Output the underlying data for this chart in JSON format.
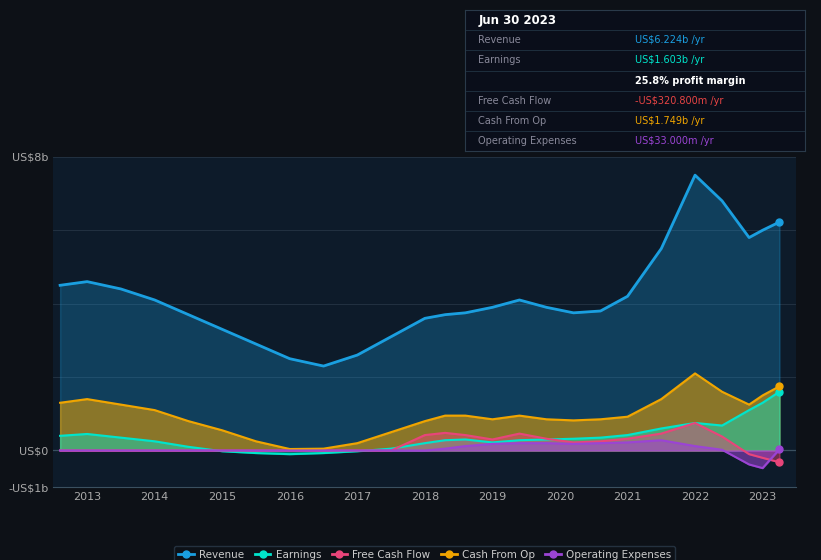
{
  "background_color": "#0d1117",
  "plot_bg_color": "#0d1b2a",
  "grid_color": "#253545",
  "title_date": "Jun 30 2023",
  "years": [
    2012.6,
    2013.0,
    2013.5,
    2014.0,
    2014.5,
    2015.0,
    2015.5,
    2016.0,
    2016.5,
    2017.0,
    2017.5,
    2018.0,
    2018.3,
    2018.6,
    2019.0,
    2019.4,
    2019.8,
    2020.2,
    2020.6,
    2021.0,
    2021.5,
    2022.0,
    2022.4,
    2022.8,
    2023.0,
    2023.25
  ],
  "revenue": [
    4.5,
    4.6,
    4.4,
    4.1,
    3.7,
    3.3,
    2.9,
    2.5,
    2.3,
    2.6,
    3.1,
    3.6,
    3.7,
    3.75,
    3.9,
    4.1,
    3.9,
    3.75,
    3.8,
    4.2,
    5.5,
    7.5,
    6.8,
    5.8,
    6.0,
    6.224
  ],
  "earnings": [
    0.4,
    0.45,
    0.35,
    0.25,
    0.1,
    -0.02,
    -0.07,
    -0.1,
    -0.07,
    -0.02,
    0.05,
    0.2,
    0.28,
    0.3,
    0.22,
    0.28,
    0.3,
    0.32,
    0.35,
    0.42,
    0.6,
    0.75,
    0.68,
    1.1,
    1.3,
    1.603
  ],
  "free_cash_flow": [
    0.0,
    0.0,
    0.0,
    0.0,
    0.0,
    0.0,
    0.0,
    0.0,
    0.0,
    0.0,
    0.0,
    0.42,
    0.48,
    0.42,
    0.3,
    0.46,
    0.32,
    0.22,
    0.25,
    0.32,
    0.46,
    0.75,
    0.38,
    -0.1,
    -0.2,
    -0.321
  ],
  "cash_from_op": [
    1.3,
    1.4,
    1.25,
    1.1,
    0.8,
    0.55,
    0.25,
    0.04,
    0.05,
    0.2,
    0.5,
    0.8,
    0.95,
    0.95,
    0.85,
    0.95,
    0.85,
    0.82,
    0.85,
    0.92,
    1.4,
    2.1,
    1.6,
    1.25,
    1.5,
    1.749
  ],
  "op_expenses": [
    0.0,
    0.0,
    0.0,
    0.0,
    0.0,
    0.0,
    0.0,
    0.0,
    0.0,
    0.0,
    0.0,
    0.0,
    0.05,
    0.12,
    0.18,
    0.2,
    0.2,
    0.18,
    0.2,
    0.22,
    0.28,
    0.12,
    0.02,
    -0.38,
    -0.48,
    0.033
  ],
  "ylim": [
    -1.0,
    8.0
  ],
  "xlim": [
    2012.5,
    2023.5
  ],
  "xticks": [
    2013,
    2014,
    2015,
    2016,
    2017,
    2018,
    2019,
    2020,
    2021,
    2022,
    2023
  ],
  "colors": {
    "revenue": "#1a9fe0",
    "earnings": "#00e5cc",
    "free_cash_flow": "#e8457a",
    "cash_from_op": "#f0a500",
    "op_expenses": "#9b44d4"
  },
  "info_rows": [
    {
      "label": "Revenue",
      "value": "US$6.224b /yr",
      "value_color": "#1a9fe0"
    },
    {
      "label": "Earnings",
      "value": "US$1.603b /yr",
      "value_color": "#00e5cc"
    },
    {
      "label": "",
      "value": "25.8% profit margin",
      "value_color": "#ffffff"
    },
    {
      "label": "Free Cash Flow",
      "value": "-US$320.800m /yr",
      "value_color": "#e84444"
    },
    {
      "label": "Cash From Op",
      "value": "US$1.749b /yr",
      "value_color": "#f0a500"
    },
    {
      "label": "Operating Expenses",
      "value": "US$33.000m /yr",
      "value_color": "#9b44d4"
    }
  ],
  "legend_labels": [
    "Revenue",
    "Earnings",
    "Free Cash Flow",
    "Cash From Op",
    "Operating Expenses"
  ]
}
